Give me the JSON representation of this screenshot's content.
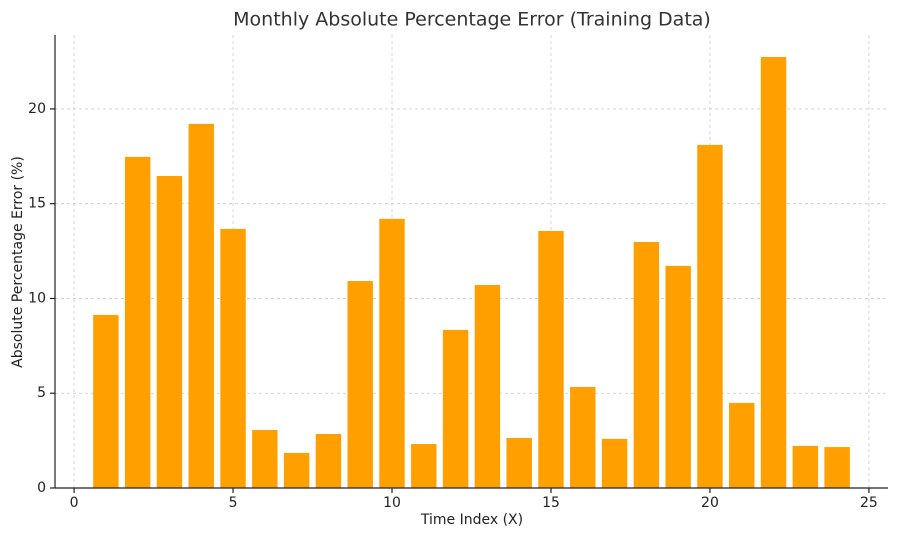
{
  "chart_data": {
    "type": "bar",
    "title": "Monthly Absolute Percentage Error (Training Data)",
    "x_label": "Time Index (X)",
    "y_label": "Absolute Percentage Error (%)",
    "x": [
      1,
      2,
      3,
      4,
      5,
      6,
      7,
      8,
      9,
      10,
      11,
      12,
      13,
      14,
      15,
      16,
      17,
      18,
      19,
      20,
      21,
      22,
      23,
      24
    ],
    "values": [
      9.13,
      17.47,
      16.46,
      19.21,
      13.67,
      3.06,
      1.85,
      2.85,
      10.92,
      14.2,
      2.32,
      8.34,
      10.71,
      2.64,
      13.56,
      5.33,
      2.59,
      12.98,
      11.72,
      18.1,
      4.49,
      22.74,
      2.22,
      2.16
    ],
    "color": "#ffa000",
    "xlim": [
      -0.6,
      25.6
    ],
    "xticks": [
      0,
      5,
      10,
      15,
      20,
      25
    ],
    "ylim": [
      0,
      23.9
    ],
    "yticks": [
      0,
      5,
      10,
      15,
      20
    ],
    "grid": true
  }
}
